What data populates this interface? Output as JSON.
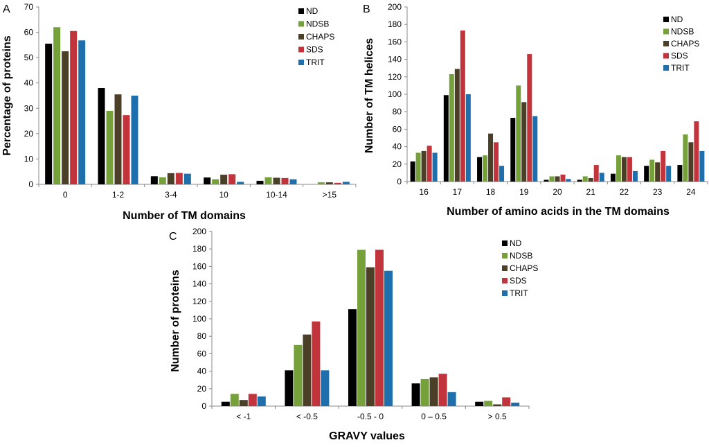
{
  "colors": {
    "ND": "#000000",
    "NDSB": "#76a03a",
    "CHAPS": "#4c3f27",
    "SDS": "#c1343b",
    "TRIT": "#1f6fad"
  },
  "chart_data": [
    {
      "panel": "A",
      "type": "bar",
      "xlabel": "Number of TM domains",
      "ylabel": "Percentage of proteins",
      "ylim": [
        0,
        70
      ],
      "yticks": [
        0,
        10,
        20,
        30,
        40,
        50,
        60,
        70
      ],
      "categories": [
        "0",
        "1-2",
        "3-4",
        "10",
        "10-14",
        ">15"
      ],
      "legend": "top-right",
      "series": [
        {
          "name": "ND",
          "values": [
            55.5,
            38,
            3.2,
            2.7,
            1.4,
            0
          ]
        },
        {
          "name": "NDSB",
          "values": [
            62,
            29,
            2.8,
            2,
            2.8,
            0.8
          ]
        },
        {
          "name": "CHAPS",
          "values": [
            52.5,
            35.5,
            4.4,
            3.8,
            2.6,
            0.8
          ]
        },
        {
          "name": "SDS",
          "values": [
            60.5,
            27.3,
            4.5,
            4,
            2.5,
            0.6
          ]
        },
        {
          "name": "TRIT",
          "values": [
            56.8,
            35,
            4.2,
            1,
            2,
            1
          ]
        }
      ]
    },
    {
      "panel": "B",
      "type": "bar",
      "xlabel": "Number of amino acids in the TM domains",
      "ylabel": "Number of TM helices",
      "ylim": [
        0,
        200
      ],
      "yticks": [
        0,
        20,
        40,
        60,
        80,
        100,
        120,
        140,
        160,
        180,
        200
      ],
      "categories": [
        "16",
        "17",
        "18",
        "19",
        "20",
        "21",
        "22",
        "23",
        "24"
      ],
      "legend": "top-right",
      "series": [
        {
          "name": "ND",
          "values": [
            23,
            99,
            28,
            73,
            2,
            2,
            9,
            18,
            19
          ]
        },
        {
          "name": "NDSB",
          "values": [
            33,
            123,
            30,
            110,
            6,
            6,
            30,
            25,
            54
          ]
        },
        {
          "name": "CHAPS",
          "values": [
            35,
            129,
            55,
            91,
            6,
            4,
            28,
            22,
            45
          ]
        },
        {
          "name": "SDS",
          "values": [
            41,
            173,
            45,
            146,
            8,
            19,
            28,
            35,
            69
          ]
        },
        {
          "name": "TRIT",
          "values": [
            33,
            100,
            18,
            75,
            3,
            10,
            12,
            18,
            35
          ]
        }
      ]
    },
    {
      "panel": "C",
      "type": "bar",
      "xlabel": "GRAVY values",
      "ylabel": "Number of proteins",
      "ylim": [
        0,
        200
      ],
      "yticks": [
        0,
        20,
        40,
        60,
        80,
        100,
        120,
        140,
        160,
        180,
        200
      ],
      "categories": [
        "< -1",
        "< -0.5",
        "-0.5 - 0",
        "0 – 0.5",
        "> 0.5"
      ],
      "legend": "top-right",
      "series": [
        {
          "name": "ND",
          "values": [
            5,
            41,
            111,
            26,
            5
          ]
        },
        {
          "name": "NDSB",
          "values": [
            14,
            70,
            179,
            31,
            6
          ]
        },
        {
          "name": "CHAPS",
          "values": [
            7,
            82,
            159,
            33,
            2
          ]
        },
        {
          "name": "SDS",
          "values": [
            14,
            97,
            179,
            37,
            10
          ]
        },
        {
          "name": "TRIT",
          "values": [
            11,
            41,
            155,
            16,
            4
          ]
        }
      ]
    }
  ]
}
